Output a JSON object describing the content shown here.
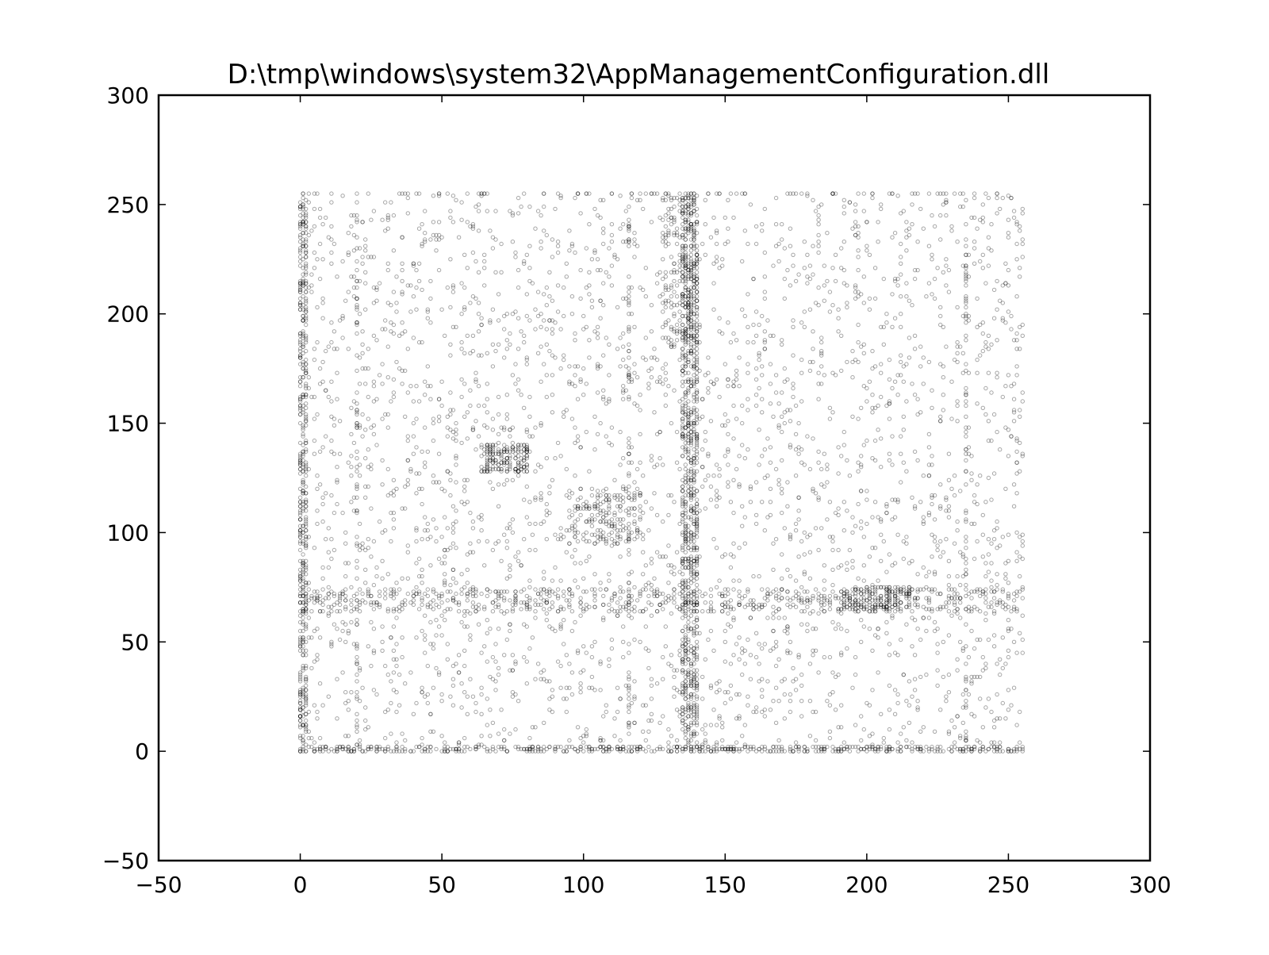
{
  "chart_data": {
    "type": "scatter",
    "title": "D:\\tmp\\windows\\system32\\AppManagementConfiguration.dll",
    "xlabel": "",
    "ylabel": "",
    "xlim": [
      -50,
      300
    ],
    "ylim": [
      -50,
      300
    ],
    "xticks": [
      -50,
      0,
      50,
      100,
      150,
      200,
      250,
      300
    ],
    "yticks": [
      -50,
      0,
      50,
      100,
      150,
      200,
      250,
      300
    ],
    "xtick_labels": [
      "−50",
      "0",
      "50",
      "100",
      "150",
      "200",
      "250",
      "300"
    ],
    "ytick_labels": [
      "−50",
      "0",
      "50",
      "100",
      "150",
      "200",
      "250",
      "300"
    ],
    "grid": false,
    "legend": "none",
    "marker": "small hollow circle",
    "marker_color": "#000000",
    "marker_opacity": 0.35,
    "x_domain": [
      0,
      255
    ],
    "y_domain": [
      0,
      255
    ],
    "series": [
      {
        "dense_columns_x": [
          0,
          1,
          2,
          20,
          135,
          136,
          137,
          138,
          139,
          140,
          116,
          235
        ],
        "dense_rows_y": [
          0,
          1,
          2,
          64,
          65,
          66,
          67,
          68,
          69,
          70,
          71,
          72,
          73,
          74,
          255
        ],
        "clusters": [
          {
            "x": [
              95,
              120
            ],
            "y": [
              95,
              120
            ]
          },
          {
            "x": [
              64,
              80
            ],
            "y": [
              128,
              140
            ]
          },
          {
            "x": [
              192,
              215
            ],
            "y": [
              64,
              75
            ]
          },
          {
            "x": [
              128,
              140
            ],
            "y": [
              185,
              255
            ]
          }
        ]
      }
    ]
  }
}
